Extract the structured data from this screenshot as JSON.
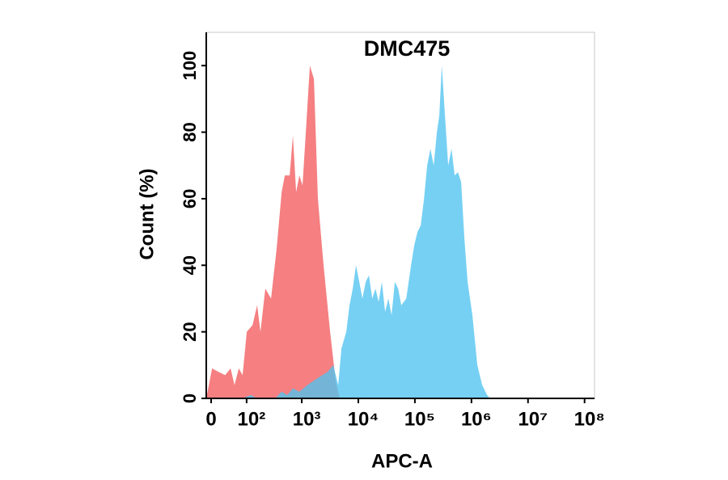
{
  "chart_data": {
    "type": "area",
    "title": "DMC475",
    "xlabel": "APC-A",
    "ylabel": "Count  (%)",
    "xscale": "asinh",
    "xlim": [
      -10,
      150000000
    ],
    "ylim": [
      0,
      110
    ],
    "xticks": [
      0,
      {
        "value": 100,
        "label": "10²"
      },
      {
        "value": 1000,
        "label": "10³"
      },
      {
        "value": 10000,
        "label": "10⁴"
      },
      {
        "value": 100000,
        "label": "10⁵"
      },
      {
        "value": 1000000,
        "label": "10⁶"
      },
      {
        "value": 10000000,
        "label": "10⁷"
      },
      {
        "value": 100000000,
        "label": "10⁸"
      }
    ],
    "yticks": [
      0,
      20,
      40,
      60,
      80,
      100
    ],
    "series": [
      {
        "color": "#f25b5e",
        "x": [
          -10,
          2,
          15,
          30,
          44,
          55,
          69,
          83,
          101,
          130,
          159,
          183,
          224,
          284,
          358,
          439,
          500,
          610,
          697,
          795,
          906,
          1030,
          1180,
          1390,
          1640,
          1930,
          2430,
          3170,
          3990,
          4700
        ],
        "values": [
          0,
          9,
          8,
          7,
          9,
          4,
          9,
          7,
          20,
          22,
          28,
          20,
          33,
          30,
          45,
          62,
          67,
          67,
          79,
          62,
          67,
          64,
          80,
          100,
          96,
          60,
          40,
          20,
          5,
          0
        ]
      },
      {
        "color": "#4fc3ef",
        "x": [
          83,
          121,
          159,
          337,
          440,
          553,
          697,
          906,
          1260,
          1870,
          2870,
          3610,
          4410,
          5030,
          6120,
          6980,
          7960,
          9100,
          10400,
          11800,
          13500,
          15400,
          17600,
          20100,
          22900,
          26100,
          29800,
          34000,
          38700,
          44200,
          50500,
          57500,
          70200,
          85500,
          97500,
          111000,
          127000,
          145000,
          165000,
          188000,
          215000,
          245000,
          270000,
          299000,
          340000,
          388000,
          444000,
          506000,
          577000,
          658000,
          750000,
          857000,
          1040000,
          1270000,
          1550000,
          1890000,
          2150000
        ],
        "values": [
          0,
          1,
          0,
          0,
          2,
          1,
          3,
          2,
          4,
          6,
          8,
          10,
          4,
          15,
          20,
          28,
          33,
          40,
          35,
          30,
          35,
          37,
          30,
          33,
          29,
          35,
          26,
          30,
          25,
          35,
          33,
          28,
          30,
          40,
          46,
          50,
          52,
          60,
          70,
          75,
          70,
          80,
          85,
          100,
          85,
          70,
          75,
          67,
          68,
          65,
          48,
          35,
          25,
          10,
          4,
          1,
          0
        ]
      }
    ]
  }
}
